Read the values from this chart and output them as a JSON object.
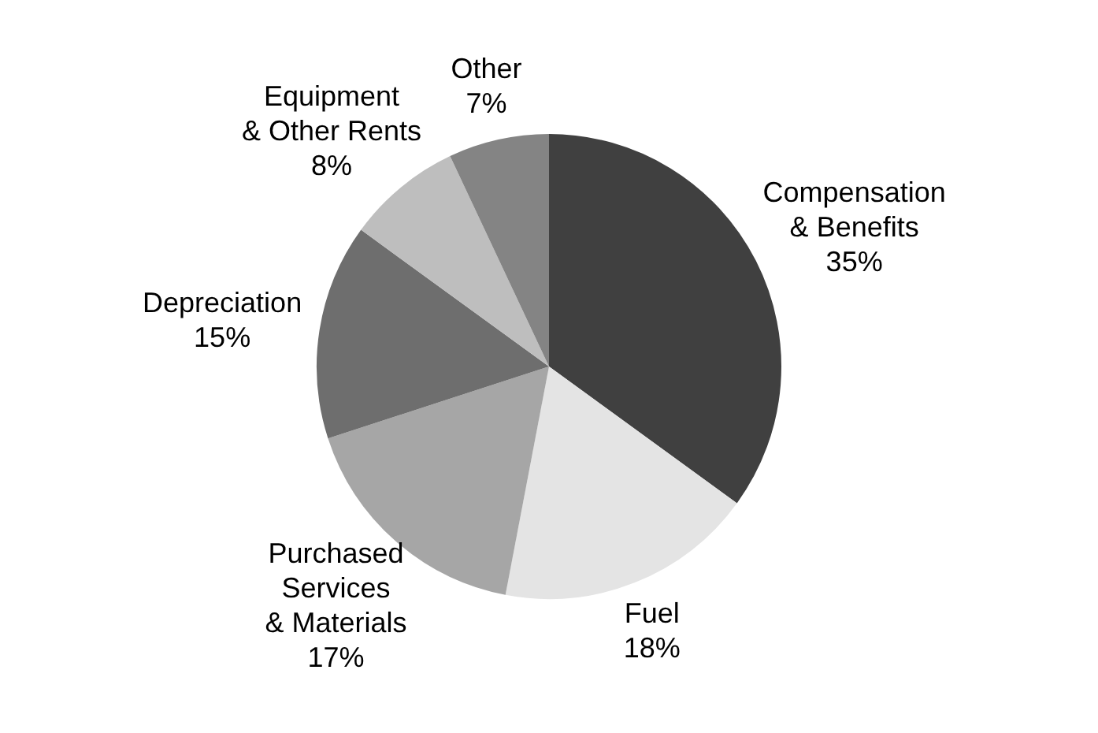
{
  "chart_data": {
    "type": "pie",
    "categories": [
      "Compensation\n& Benefits",
      "Fuel",
      "Purchased\nServices\n& Materials",
      "Depreciation",
      "Equipment\n& Other Rents",
      "Other"
    ],
    "values": [
      35,
      18,
      17,
      15,
      8,
      7
    ],
    "value_labels": [
      "35%",
      "18%",
      "17%",
      "15%",
      "8%",
      "7%"
    ],
    "colors": [
      "#404040",
      "#e4e4e4",
      "#a6a6a6",
      "#6e6e6e",
      "#bebebe",
      "#848484"
    ]
  }
}
